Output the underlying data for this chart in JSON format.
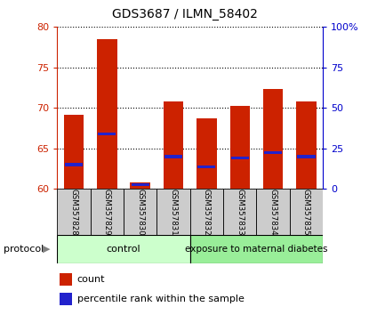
{
  "title": "GDS3687 / ILMN_58402",
  "samples": [
    "GSM357828",
    "GSM357829",
    "GSM357830",
    "GSM357831",
    "GSM357832",
    "GSM357833",
    "GSM357834",
    "GSM357835"
  ],
  "count_values": [
    69.2,
    78.5,
    60.8,
    70.8,
    68.7,
    70.3,
    72.3,
    70.8
  ],
  "percentile_values": [
    63.0,
    66.8,
    60.5,
    64.0,
    62.7,
    63.8,
    64.5,
    64.0
  ],
  "ylim": [
    60,
    80
  ],
  "yticks_left": [
    60,
    65,
    70,
    75,
    80
  ],
  "yticks_right": [
    0,
    25,
    50,
    75,
    100
  ],
  "bar_color": "#cc2200",
  "percentile_color": "#2222cc",
  "grid_color": "#000000",
  "control_group_count": 4,
  "diabetes_group_count": 4,
  "control_label": "control",
  "diabetes_label": "exposure to maternal diabetes",
  "protocol_label": "protocol",
  "legend_count": "count",
  "legend_percentile": "percentile rank within the sample",
  "control_color": "#ccffcc",
  "diabetes_color": "#99ee99",
  "tick_area_color": "#cccccc",
  "left_axis_color": "#cc2200",
  "right_axis_color": "#0000cc"
}
